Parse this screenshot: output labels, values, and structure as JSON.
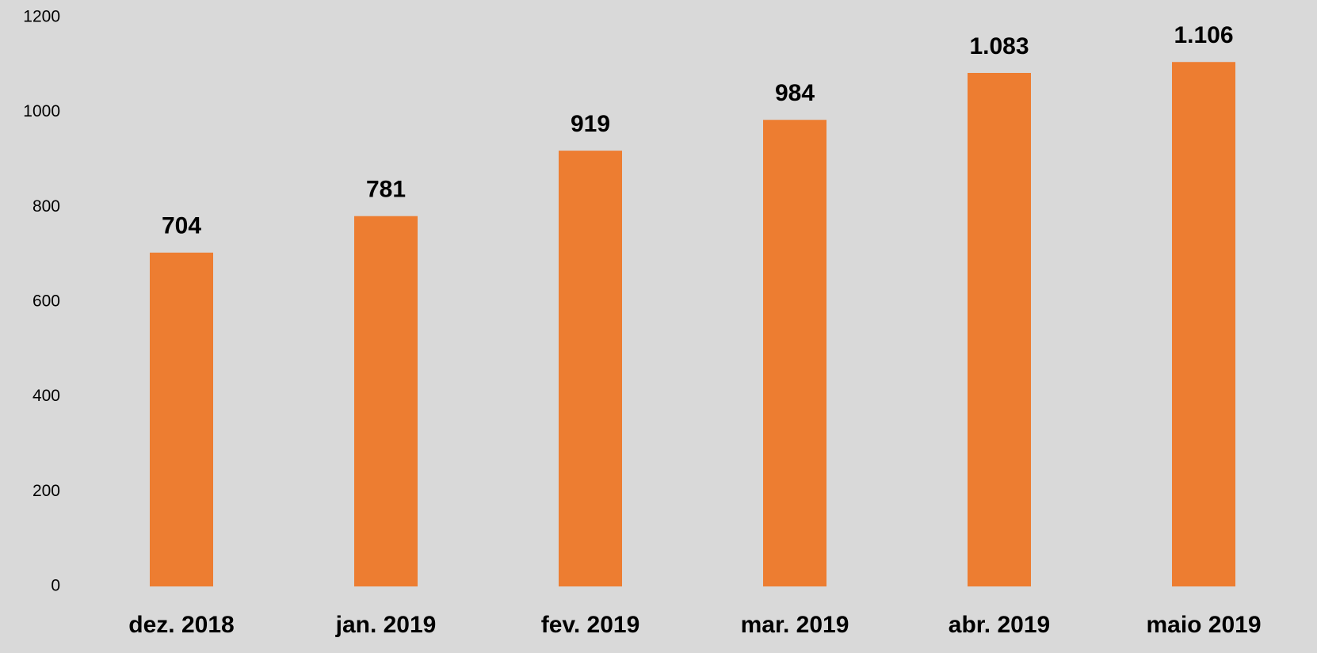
{
  "chart_data": {
    "type": "bar",
    "categories": [
      "dez. 2018",
      "jan. 2019",
      "fev. 2019",
      "mar. 2019",
      "abr. 2019",
      "maio 2019"
    ],
    "values": [
      704,
      781,
      919,
      984,
      1083,
      1106
    ],
    "value_labels": [
      "704",
      "781",
      "919",
      "984",
      "1.083",
      "1.106"
    ],
    "color": "#ed7d31",
    "ylim": [
      0,
      1200
    ],
    "yticks": [
      0,
      200,
      400,
      600,
      800,
      1000,
      1200
    ],
    "grid": false
  }
}
